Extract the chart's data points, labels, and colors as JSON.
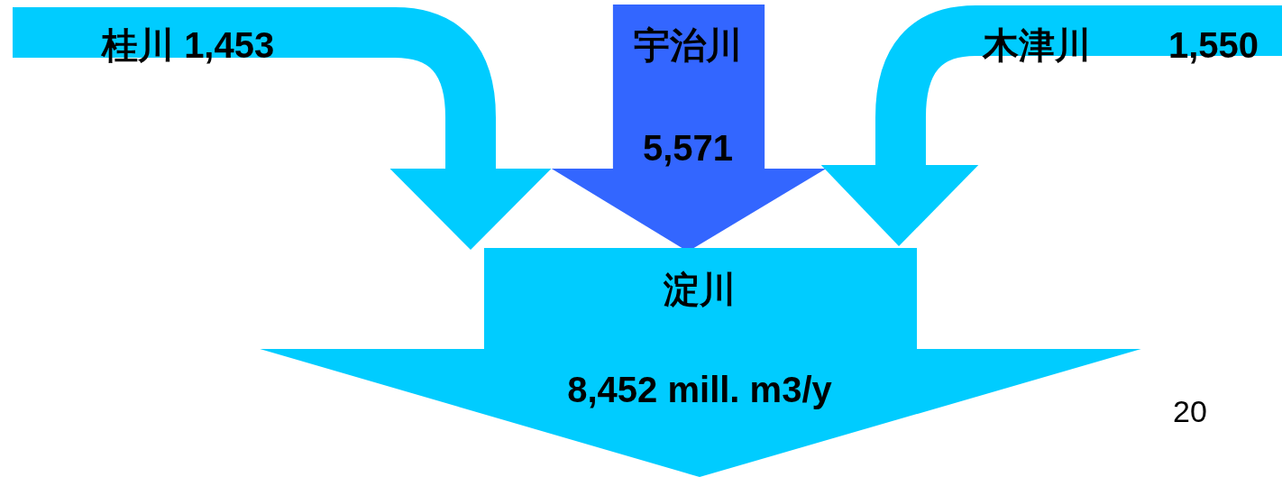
{
  "chart_data": {
    "type": "other",
    "categories": [
      "桂川",
      "宇治川",
      "木津川",
      "淀川"
    ],
    "values": [
      1453,
      5571,
      1550,
      8452
    ],
    "value_labels": [
      "1,453",
      "5,571",
      "1,550",
      "8,452 mill. m3/y"
    ],
    "colors": [
      "#00ccff",
      "#3366ff",
      "#00ccff",
      "#00ccff"
    ],
    "annotations": [
      "20"
    ]
  }
}
